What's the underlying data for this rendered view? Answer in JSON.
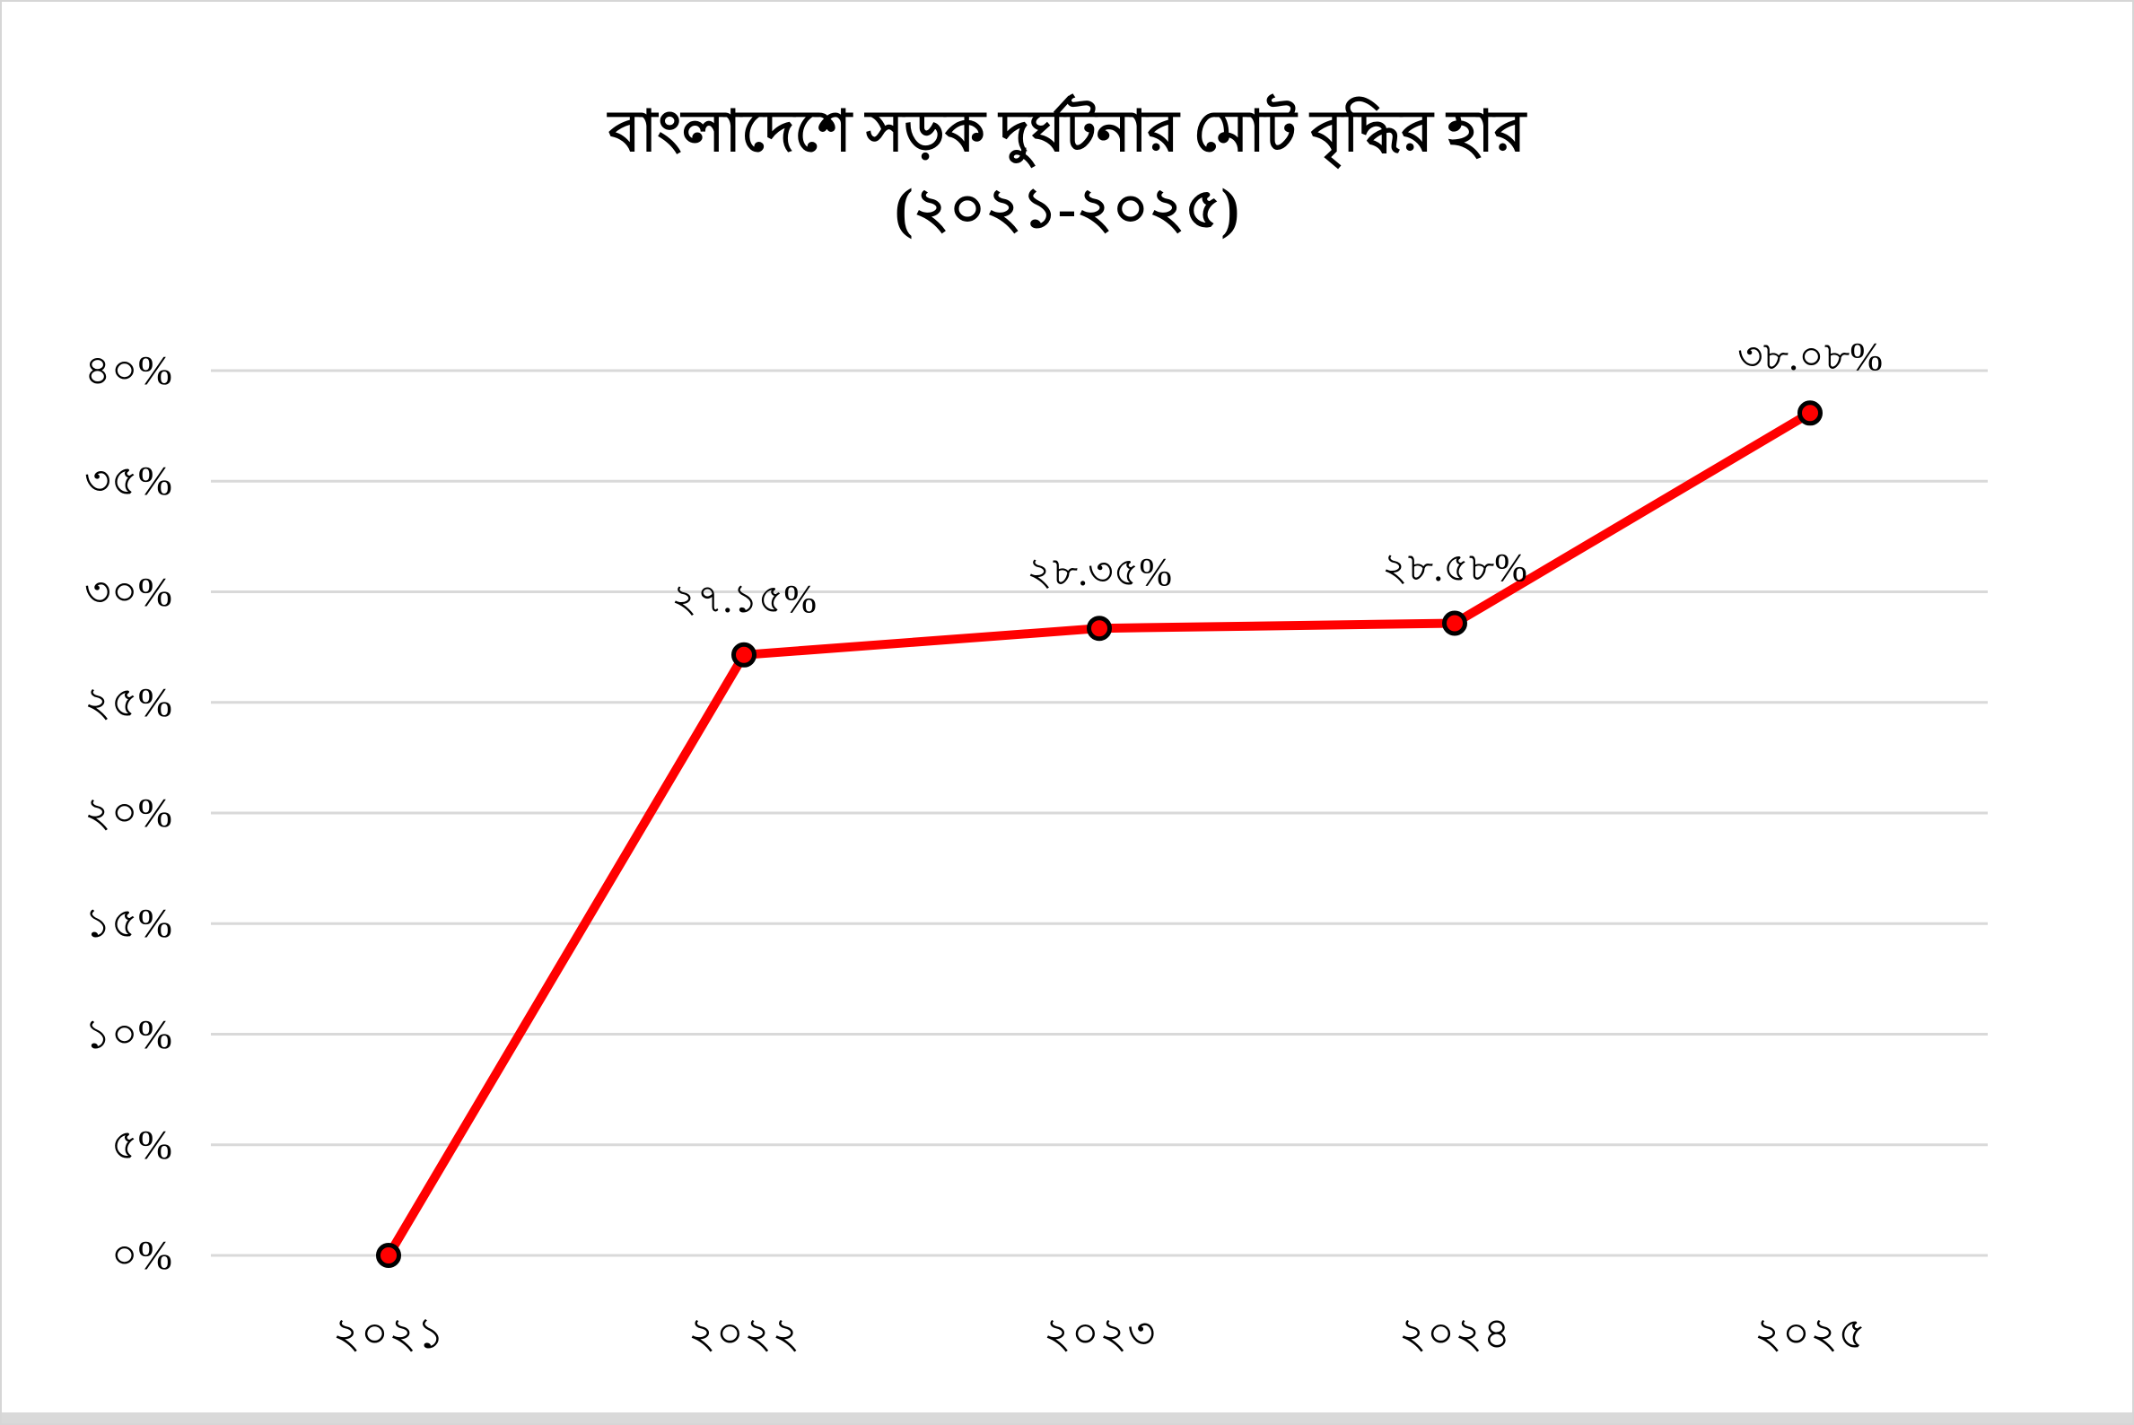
{
  "page": {
    "background": "#ffffff",
    "border_color": "#d6d6d6",
    "bottom_bar_color": "#d9d9d9"
  },
  "chart_data": {
    "type": "line",
    "title": "বাংলাদেশে সড়ক দুর্ঘটনার মোট বৃদ্ধির হার",
    "subtitle": "(২০২১-২০২৫)",
    "categories": [
      "২০২১",
      "২০২২",
      "২০২৩",
      "২০২৪",
      "২০২৫"
    ],
    "series": [
      {
        "name": "মোট বৃদ্ধির হার",
        "values": [
          0,
          27.15,
          28.35,
          28.58,
          38.08
        ]
      }
    ],
    "point_labels": [
      "",
      "২৭.১৫%",
      "২৮.৩৫%",
      "২৮.৫৮%",
      "৩৮.০৮%"
    ],
    "y_ticks": [
      {
        "value": 0,
        "label": "০%"
      },
      {
        "value": 5,
        "label": "৫%"
      },
      {
        "value": 10,
        "label": "১০%"
      },
      {
        "value": 15,
        "label": "১৫%"
      },
      {
        "value": 20,
        "label": "২০%"
      },
      {
        "value": 25,
        "label": "২৫%"
      },
      {
        "value": 30,
        "label": "৩০%"
      },
      {
        "value": 35,
        "label": "৩৫%"
      },
      {
        "value": 40,
        "label": "৪০%"
      }
    ],
    "ylim": [
      0,
      40
    ],
    "xlabel": "",
    "ylabel": "",
    "grid": "horizontal",
    "legend": "none",
    "colors": {
      "line": "#ff0000",
      "marker_fill": "#ff0000",
      "marker_stroke": "#000000",
      "gridline": "#d9d9d9",
      "text": "#000000"
    }
  }
}
